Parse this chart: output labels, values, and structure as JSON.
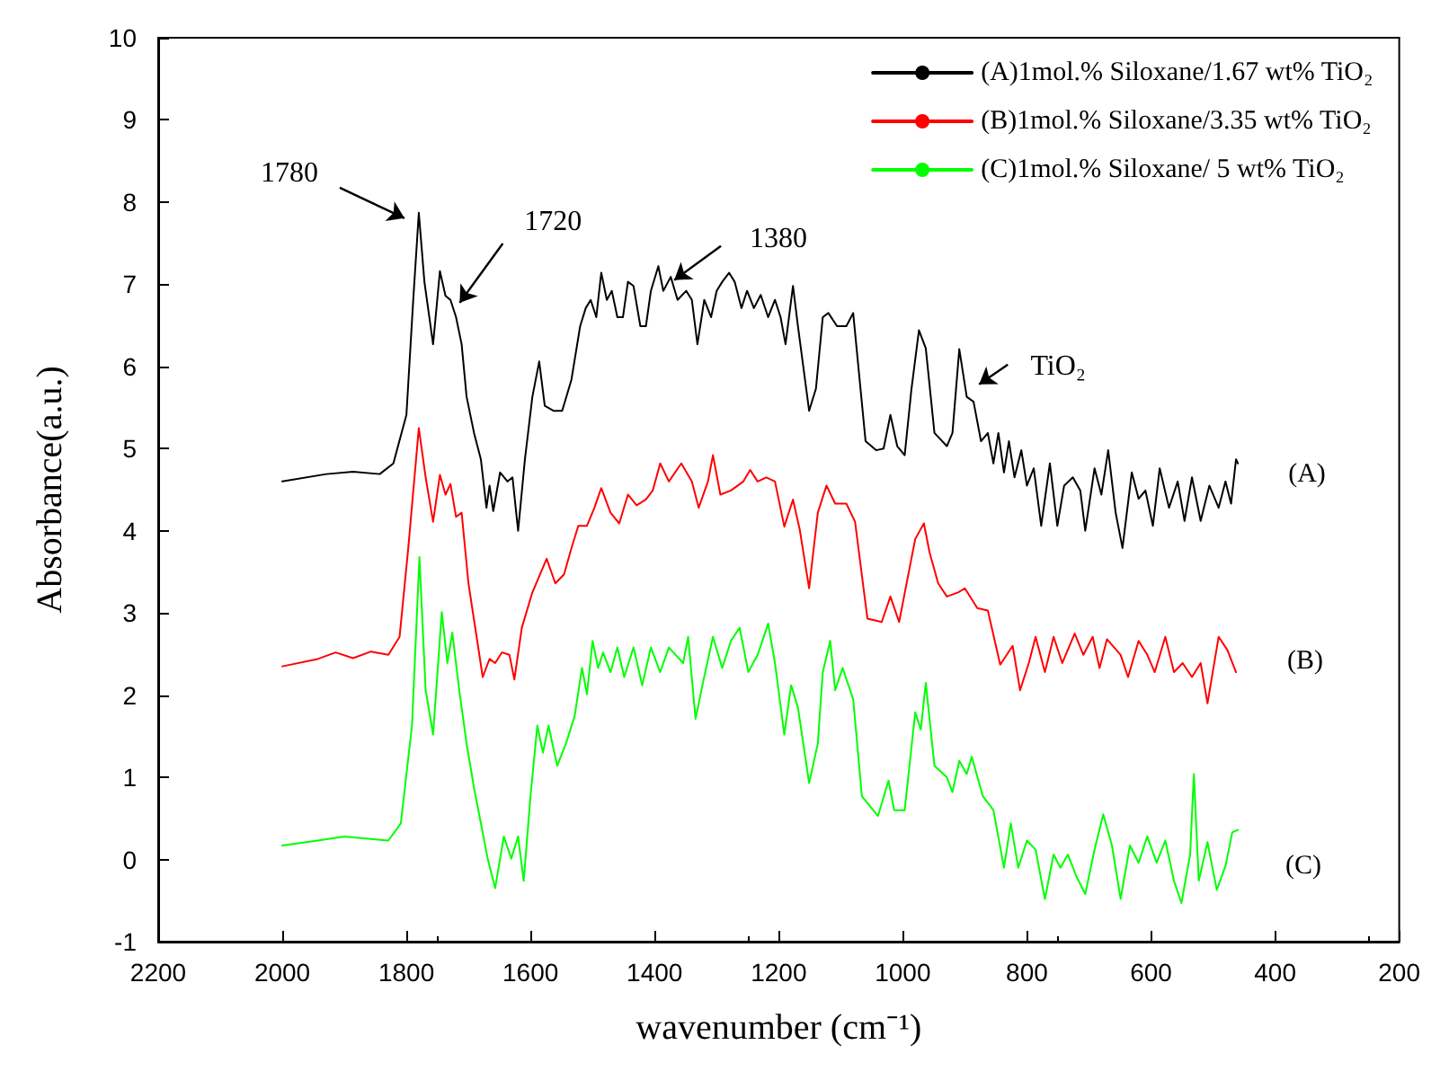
{
  "chart_data": {
    "type": "line",
    "xlabel": "wavenumber (cm⁻¹)",
    "ylabel": "Absorbance(a.u.)",
    "xlim": [
      2200,
      200
    ],
    "xticks": [
      2200,
      2000,
      1800,
      1600,
      1400,
      1200,
      1000,
      800,
      600,
      400,
      200
    ],
    "ylim": [
      -1,
      10
    ],
    "yticks": [
      -1,
      0,
      1,
      2,
      3,
      4,
      5,
      6,
      7,
      8,
      9,
      10
    ],
    "grid": false,
    "legend": "top right",
    "line_style": "solid",
    "annotations": [
      {
        "text": "1780",
        "x": 1780,
        "y": 7.87
      },
      {
        "text": "1720",
        "x": 1720,
        "y": 6.6
      },
      {
        "text": "1380",
        "x": 1380,
        "y": 6.92
      },
      {
        "text": "TiO₂",
        "x": 880,
        "y": 5.3
      },
      "(A)",
      "(B)",
      "(C)"
    ],
    "series": [
      {
        "name": "(A)1mol.% Siloxane/1.67 wt% TiO₂",
        "color": "#000000",
        "x": [
          2000,
          1929,
          1886,
          1843,
          1821,
          1800,
          1789,
          1780,
          1771,
          1757,
          1746,
          1737,
          1729,
          1720,
          1711,
          1703,
          1691,
          1680,
          1671,
          1666,
          1660,
          1649,
          1637,
          1629,
          1620,
          1609,
          1597,
          1586,
          1577,
          1563,
          1549,
          1534,
          1520,
          1511,
          1503,
          1494,
          1486,
          1477,
          1469,
          1460,
          1451,
          1443,
          1434,
          1423,
          1414,
          1406,
          1394,
          1386,
          1374,
          1363,
          1349,
          1340,
          1331,
          1320,
          1309,
          1300,
          1291,
          1280,
          1271,
          1260,
          1251,
          1240,
          1229,
          1217,
          1206,
          1197,
          1189,
          1177,
          1169,
          1151,
          1140,
          1129,
          1120,
          1106,
          1091,
          1080,
          1060,
          1043,
          1031,
          1020,
          1009,
          997,
          986,
          974,
          963,
          949,
          929,
          920,
          909,
          897,
          886,
          874,
          863,
          854,
          846,
          837,
          829,
          820,
          809,
          800,
          789,
          777,
          763,
          751,
          740,
          726,
          714,
          706,
          691,
          680,
          669,
          657,
          646,
          631,
          620,
          609,
          597,
          586,
          571,
          557,
          546,
          534,
          520,
          506,
          491,
          480,
          471,
          463,
          460
        ],
        "values": [
          4.6,
          4.69,
          4.72,
          4.69,
          4.82,
          5.41,
          6.81,
          7.87,
          7.03,
          6.27,
          7.16,
          6.86,
          6.81,
          6.6,
          6.27,
          5.63,
          5.19,
          4.87,
          4.28,
          4.55,
          4.24,
          4.71,
          4.6,
          4.65,
          4.0,
          4.87,
          5.63,
          6.06,
          5.52,
          5.46,
          5.46,
          5.84,
          6.49,
          6.71,
          6.81,
          6.6,
          7.14,
          6.81,
          6.92,
          6.6,
          6.6,
          7.03,
          6.98,
          6.49,
          6.49,
          6.92,
          7.22,
          6.92,
          7.09,
          6.81,
          6.92,
          6.81,
          6.27,
          6.81,
          6.6,
          6.92,
          7.03,
          7.14,
          7.03,
          6.71,
          6.92,
          6.71,
          6.87,
          6.6,
          6.81,
          6.6,
          6.27,
          6.98,
          6.49,
          5.46,
          5.73,
          6.6,
          6.65,
          6.49,
          6.49,
          6.65,
          5.09,
          4.98,
          5.0,
          5.41,
          5.03,
          4.92,
          5.73,
          6.44,
          6.22,
          5.19,
          5.03,
          5.19,
          6.21,
          5.63,
          5.57,
          5.09,
          5.19,
          4.82,
          5.19,
          4.71,
          5.09,
          4.65,
          4.98,
          4.55,
          4.76,
          4.06,
          4.82,
          4.06,
          4.55,
          4.65,
          4.49,
          4.0,
          4.76,
          4.44,
          4.98,
          4.22,
          3.79,
          4.71,
          4.39,
          4.49,
          4.06,
          4.76,
          4.28,
          4.6,
          4.12,
          4.65,
          4.12,
          4.55,
          4.28,
          4.6,
          4.33,
          4.87,
          4.82
        ]
      },
      {
        "name": "(B)1mol.% Siloxane/3.35 wt% TiO₂",
        "color": "#ff0000",
        "x": [
          2000,
          1943,
          1914,
          1886,
          1857,
          1829,
          1811,
          1797,
          1780,
          1769,
          1757,
          1746,
          1737,
          1729,
          1720,
          1711,
          1700,
          1677,
          1666,
          1657,
          1646,
          1634,
          1626,
          1614,
          1597,
          1574,
          1560,
          1546,
          1534,
          1523,
          1509,
          1497,
          1486,
          1471,
          1457,
          1443,
          1429,
          1414,
          1403,
          1391,
          1377,
          1357,
          1340,
          1329,
          1314,
          1306,
          1294,
          1277,
          1257,
          1246,
          1234,
          1220,
          1206,
          1191,
          1177,
          1166,
          1151,
          1137,
          1123,
          1109,
          1091,
          1077,
          1057,
          1034,
          1020,
          1006,
          980,
          966,
          957,
          943,
          929,
          911,
          900,
          880,
          863,
          843,
          823,
          811,
          797,
          786,
          771,
          757,
          743,
          723,
          709,
          694,
          683,
          671,
          649,
          637,
          620,
          606,
          594,
          577,
          563,
          549,
          534,
          520,
          509,
          491,
          477,
          463
        ],
        "values": [
          2.35,
          2.44,
          2.52,
          2.45,
          2.53,
          2.49,
          2.71,
          3.79,
          5.25,
          4.65,
          4.11,
          4.68,
          4.44,
          4.57,
          4.17,
          4.22,
          3.36,
          2.22,
          2.44,
          2.39,
          2.52,
          2.49,
          2.19,
          2.82,
          3.25,
          3.66,
          3.36,
          3.47,
          3.79,
          4.06,
          4.06,
          4.28,
          4.52,
          4.22,
          4.09,
          4.44,
          4.31,
          4.38,
          4.49,
          4.82,
          4.6,
          4.82,
          4.6,
          4.28,
          4.6,
          4.92,
          4.44,
          4.49,
          4.6,
          4.74,
          4.6,
          4.65,
          4.6,
          4.05,
          4.38,
          4.01,
          3.3,
          4.22,
          4.55,
          4.33,
          4.33,
          4.11,
          2.93,
          2.89,
          3.2,
          2.89,
          3.9,
          4.09,
          3.74,
          3.36,
          3.2,
          3.25,
          3.3,
          3.06,
          3.03,
          2.37,
          2.6,
          2.06,
          2.39,
          2.71,
          2.28,
          2.71,
          2.39,
          2.75,
          2.49,
          2.71,
          2.33,
          2.68,
          2.49,
          2.22,
          2.66,
          2.49,
          2.28,
          2.71,
          2.28,
          2.39,
          2.22,
          2.39,
          1.9,
          2.71,
          2.55,
          2.28
        ]
      },
      {
        "name": "(C)1mol.% Siloxane/ 5 wt% TiO₂",
        "color": "#00ff00",
        "x": [
          2000,
          1943,
          1900,
          1857,
          1829,
          1809,
          1791,
          1779,
          1769,
          1757,
          1743,
          1734,
          1726,
          1714,
          1703,
          1691,
          1680,
          1669,
          1657,
          1643,
          1631,
          1620,
          1611,
          1600,
          1589,
          1580,
          1571,
          1557,
          1543,
          1529,
          1517,
          1509,
          1500,
          1491,
          1483,
          1471,
          1460,
          1449,
          1434,
          1420,
          1406,
          1391,
          1377,
          1354,
          1346,
          1334,
          1323,
          1306,
          1291,
          1277,
          1263,
          1249,
          1234,
          1217,
          1206,
          1191,
          1180,
          1169,
          1151,
          1137,
          1129,
          1117,
          1109,
          1097,
          1080,
          1066,
          1040,
          1023,
          1014,
          997,
          980,
          971,
          963,
          949,
          929,
          920,
          909,
          897,
          889,
          871,
          854,
          837,
          826,
          814,
          800,
          786,
          771,
          757,
          746,
          734,
          720,
          706,
          691,
          677,
          663,
          649,
          634,
          620,
          606,
          591,
          577,
          563,
          551,
          537,
          531,
          523,
          509,
          494,
          480,
          469,
          460
        ],
        "values": [
          0.17,
          0.23,
          0.28,
          0.25,
          0.23,
          0.44,
          1.63,
          3.68,
          2.06,
          1.52,
          3.01,
          2.39,
          2.76,
          2.01,
          1.41,
          0.87,
          0.44,
          0.01,
          -0.35,
          0.28,
          0.01,
          0.28,
          -0.26,
          0.77,
          1.63,
          1.3,
          1.63,
          1.14,
          1.41,
          1.74,
          2.33,
          2.01,
          2.66,
          2.33,
          2.52,
          2.28,
          2.58,
          2.22,
          2.58,
          2.12,
          2.58,
          2.28,
          2.58,
          2.39,
          2.71,
          1.71,
          2.12,
          2.71,
          2.33,
          2.66,
          2.82,
          2.28,
          2.49,
          2.87,
          2.39,
          1.52,
          2.12,
          1.85,
          0.93,
          1.41,
          2.28,
          2.66,
          2.06,
          2.33,
          1.95,
          0.77,
          0.53,
          0.96,
          0.6,
          0.6,
          1.79,
          1.58,
          2.15,
          1.14,
          1.0,
          0.82,
          1.2,
          1.04,
          1.25,
          0.77,
          0.6,
          -0.1,
          0.44,
          -0.1,
          0.23,
          0.12,
          -0.48,
          0.06,
          -0.1,
          0.06,
          -0.21,
          -0.42,
          0.12,
          0.55,
          0.17,
          -0.48,
          0.17,
          -0.04,
          0.28,
          -0.04,
          0.23,
          -0.26,
          -0.53,
          0.06,
          1.04,
          -0.26,
          0.21,
          -0.37,
          -0.08,
          0.33,
          0.36
        ]
      }
    ]
  }
}
